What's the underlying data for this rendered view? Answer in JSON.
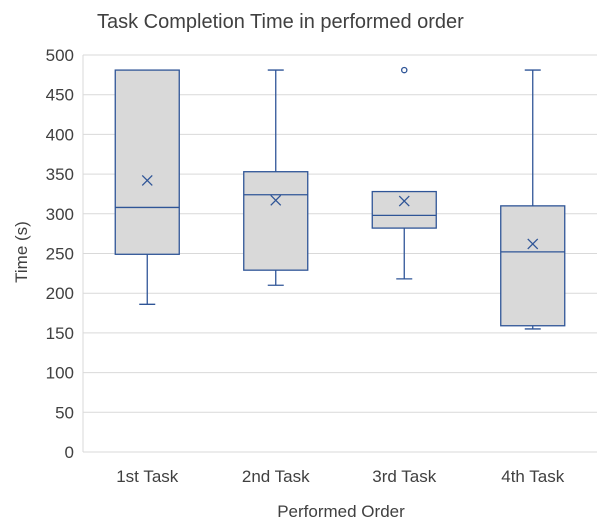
{
  "chart_data": {
    "type": "box",
    "title": "Task Completion Time in performed order",
    "xlabel": "Performed Order",
    "ylabel": "Time  (s)",
    "ylim": [
      0,
      500
    ],
    "yticks": [
      0,
      50,
      100,
      150,
      200,
      250,
      300,
      350,
      400,
      450,
      500
    ],
    "grid": true,
    "legend": "none",
    "colors": {
      "box_fill": "#d9d9d9",
      "box_stroke": "#2f5597",
      "grid": "#d9d9d9",
      "text": "#404040"
    },
    "categories": [
      "1st Task",
      "2nd Task",
      "3rd Task",
      "4th Task"
    ],
    "boxes": [
      {
        "category": "1st Task",
        "min": 186,
        "q1": 249,
        "median": 308,
        "q3": 481,
        "max": 481,
        "mean": 342,
        "outliers": []
      },
      {
        "category": "2nd Task",
        "min": 210,
        "q1": 229,
        "median": 324,
        "q3": 353,
        "max": 481,
        "mean": 317,
        "outliers": []
      },
      {
        "category": "3rd Task",
        "min": 218,
        "q1": 282,
        "median": 298,
        "q3": 328,
        "max": 328,
        "mean": 316,
        "outliers": [
          481
        ]
      },
      {
        "category": "4th Task",
        "min": 155,
        "q1": 159,
        "median": 252,
        "q3": 310,
        "max": 481,
        "mean": 262,
        "outliers": []
      }
    ]
  }
}
